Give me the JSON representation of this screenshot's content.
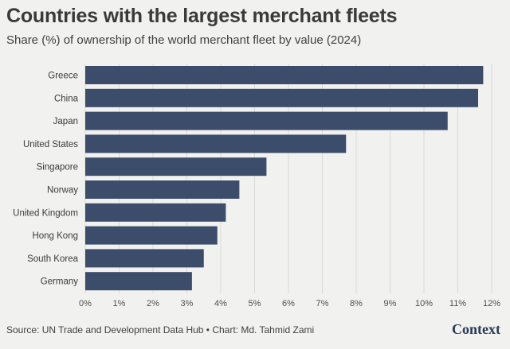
{
  "header": {
    "title": "Countries with the largest merchant fleets",
    "subtitle": "Share (%) of ownership of the world merchant fleet by value (2024)"
  },
  "chart_data": {
    "type": "bar",
    "orientation": "horizontal",
    "categories": [
      "Greece",
      "China",
      "Japan",
      "United States",
      "Singapore",
      "Norway",
      "United Kingdom",
      "Hong Kong",
      "South Korea",
      "Germany"
    ],
    "values": [
      11.75,
      11.6,
      10.7,
      7.7,
      5.35,
      4.55,
      4.15,
      3.9,
      3.5,
      3.15
    ],
    "unit": "%",
    "xlim": [
      0,
      12
    ],
    "xticks": [
      "0%",
      "1%",
      "2%",
      "3%",
      "4%",
      "5%",
      "6%",
      "7%",
      "8%",
      "9%",
      "10%",
      "11%",
      "12%"
    ],
    "bar_color": "#3b4d6b",
    "grid": true
  },
  "footer": {
    "source": "Source: UN Trade and Development Data Hub • Chart: Md. Tahmid Zami",
    "logo": "Context"
  }
}
